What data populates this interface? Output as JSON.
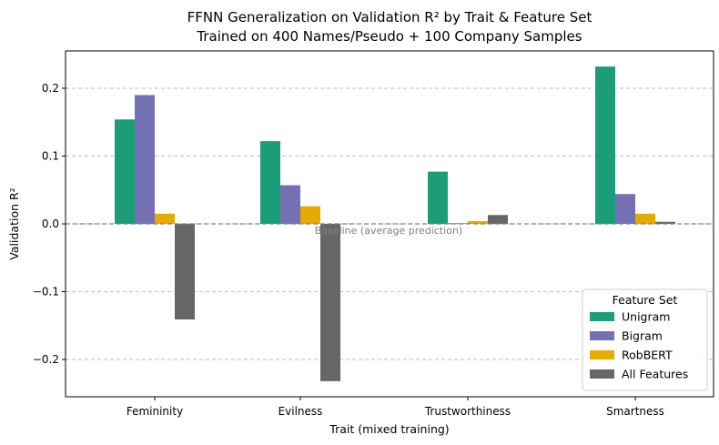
{
  "chart_data": {
    "type": "bar",
    "title_line1": "FFNN Generalization on Validation R² by Trait & Feature Set",
    "title_line2": "Trained on 400 Names/Pseudo + 100 Company Samples",
    "xlabel": "Trait (mixed training)",
    "ylabel": "Validation R²",
    "categories": [
      "Femininity",
      "Evilness",
      "Trustworthiness",
      "Smartness"
    ],
    "series": [
      {
        "name": "Unigram",
        "color": "#1b9e77",
        "values": [
          0.154,
          0.122,
          0.077,
          0.232
        ]
      },
      {
        "name": "Bigram",
        "color": "#7570b3",
        "values": [
          0.19,
          0.057,
          0.001,
          0.044
        ]
      },
      {
        "name": "RobBERT",
        "color": "#e6ab02",
        "values": [
          0.015,
          0.026,
          0.004,
          0.015
        ]
      },
      {
        "name": "All Features",
        "color": "#666666",
        "values": [
          -0.141,
          -0.232,
          0.013,
          0.003
        ]
      }
    ],
    "ylim": [
      -0.255,
      0.255
    ],
    "yticks": [
      -0.2,
      -0.1,
      0.0,
      0.1,
      0.2
    ],
    "ytick_labels": [
      "−0.2",
      "−0.1",
      "0.0",
      "0.1",
      "0.2"
    ],
    "grid": "y-dashed",
    "baseline": {
      "value": 0.0,
      "label": "Baseline (average prediction)"
    },
    "legend": {
      "title": "Feature Set",
      "position": "lower-right"
    }
  }
}
